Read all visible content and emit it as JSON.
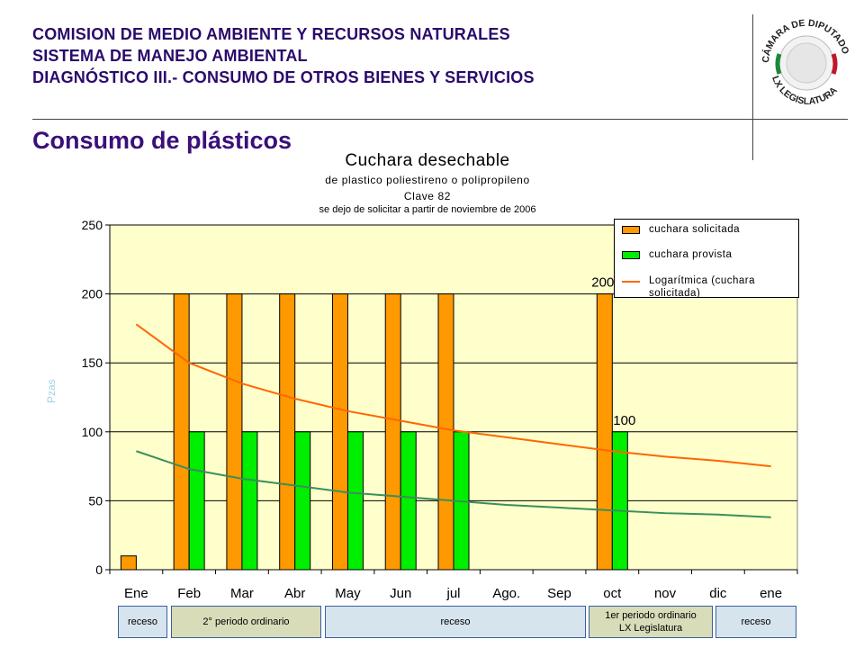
{
  "header": {
    "line1": "COMISION DE MEDIO AMBIENTE Y RECURSOS NATURALES",
    "line2": "SISTEMA DE MANEJO AMBIENTAL",
    "line3": "DIAGNÓSTICO  III.- CONSUMO DE OTROS BIENES Y SERVICIOS"
  },
  "page_title": "Consumo de plásticos",
  "logo": {
    "icon": "camara-de-diputados-seal-icon",
    "top_text": "CÁMARA DE DIPUTADOS",
    "bottom_text": "LX LEGISLATURA"
  },
  "chart_data": {
    "type": "bar",
    "title": "Cuchara desechable",
    "subtitle_lines": [
      "de plastico poliestireno o polipropileno",
      "Clave 82",
      "se dejo de solicitar a partir de noviembre de 2006"
    ],
    "ylabel": "Pzas",
    "ylim": [
      0,
      250
    ],
    "yticks": [
      0,
      50,
      100,
      150,
      200,
      250
    ],
    "grid": true,
    "legend_position": "top-right",
    "categories": [
      "Ene",
      "Feb",
      "Mar",
      "Abr",
      "May",
      "Jun",
      "jul",
      "Ago.",
      "Sep",
      "oct",
      "nov",
      "dic",
      "ene"
    ],
    "series": [
      {
        "name": "cuchara solicitada",
        "color": "#ff9900",
        "values": [
          10,
          200,
          200,
          200,
          200,
          200,
          200,
          0,
          0,
          200,
          0,
          0,
          0
        ]
      },
      {
        "name": "cuchara provista",
        "color": "#00ee00",
        "values": [
          0,
          100,
          100,
          100,
          100,
          100,
          100,
          0,
          0,
          100,
          0,
          0,
          0
        ]
      }
    ],
    "trendlines": [
      {
        "name": "Logarítmica (cuchara solicitada)",
        "color": "#ff6600",
        "values": [
          178,
          150,
          135,
          124,
          115,
          108,
          101,
          96,
          91,
          86,
          82,
          79,
          75
        ]
      },
      {
        "name": "",
        "color": "#3a8f5a",
        "values": [
          86,
          73,
          66,
          61,
          56,
          53,
          50,
          47,
          45,
          43,
          41,
          40,
          38
        ]
      }
    ],
    "data_labels": [
      {
        "category": "oct",
        "series": "cuchara solicitada",
        "value": 200,
        "text": "200"
      },
      {
        "category": "oct",
        "series": "cuchara provista",
        "value": 100,
        "text": "100"
      }
    ],
    "colors": {
      "plot_bg": "#ffffcc",
      "grid": "#000000"
    }
  },
  "periods": [
    {
      "label": "receso",
      "span": [
        "Ene",
        "Ene"
      ],
      "color": "#d6e4ee"
    },
    {
      "label": "2° periodo ordinario",
      "span": [
        "Feb",
        "May"
      ],
      "color": "#d8dcb8"
    },
    {
      "label": "receso",
      "span": [
        "May",
        "Sep"
      ],
      "color": "#d6e4ee"
    },
    {
      "label": "1er periodo ordinario\nLX Legislatura",
      "span": [
        "oct",
        "nov"
      ],
      "color": "#d8dcb8"
    },
    {
      "label": "receso",
      "span": [
        "nov",
        "ene"
      ],
      "color": "#d6e4ee"
    }
  ]
}
